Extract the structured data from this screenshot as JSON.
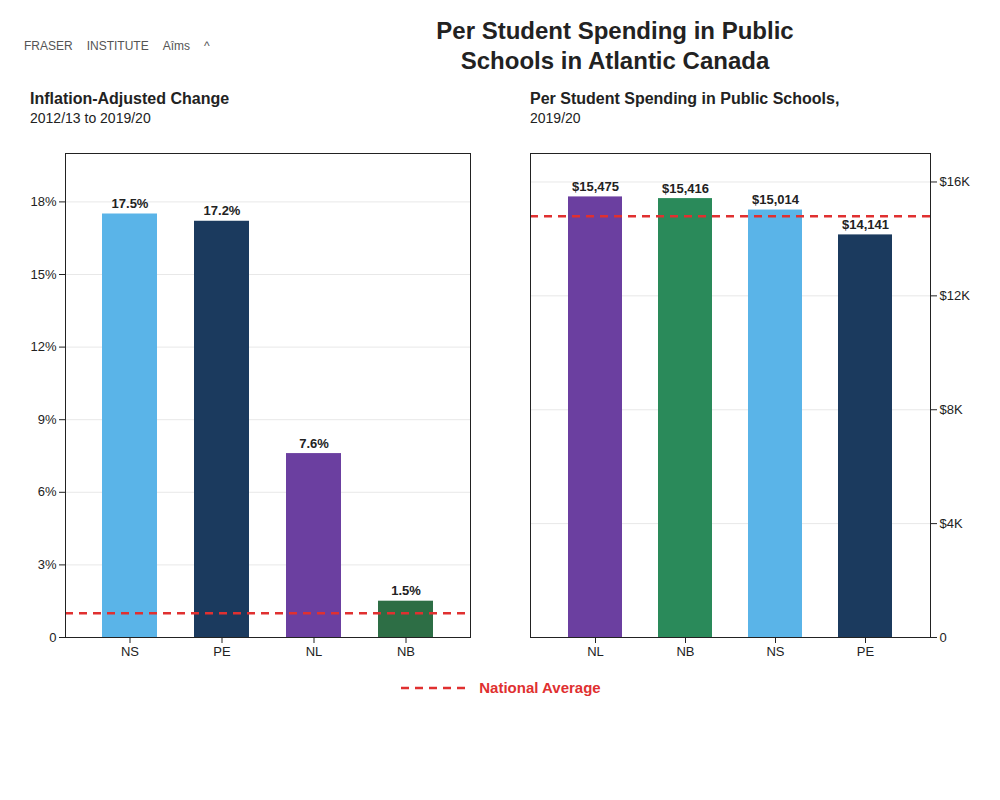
{
  "title": "Per Student Spending in Public\nSchools in Atlantic Canada",
  "annotations": [
    "FRASER",
    "INSTITUTE",
    "Aîms",
    "^"
  ],
  "legend": "bottom",
  "chart_data": [
    {
      "type": "bar",
      "title": "Inflation-Adjusted Change",
      "subtitle": "2012/13 to 2019/20",
      "categories": [
        "NS",
        "PE",
        "NL",
        "NB"
      ],
      "values": [
        17.5,
        17.2,
        7.6,
        1.5
      ],
      "value_labels": [
        "17.5%",
        "17.2%",
        "7.6%",
        "1.5%"
      ],
      "colors": [
        "#5ab4e8",
        "#1b3a5e",
        "#6b3fa0",
        "#2d6e45"
      ],
      "data_labels": true,
      "ylim": [
        0,
        20
      ],
      "yticks": [
        0,
        {
          "value": 3,
          "label": "3%"
        },
        {
          "value": 6,
          "label": "6%"
        },
        {
          "value": 9,
          "label": "9%"
        },
        {
          "value": 12,
          "label": "12%"
        },
        {
          "value": 15,
          "label": "15%"
        },
        {
          "value": 18,
          "label": "18%"
        }
      ],
      "grid": true,
      "national_average": {
        "name": "National Average",
        "value": 1.0,
        "color": "#e03030",
        "line_style": "dashed"
      }
    },
    {
      "type": "bar",
      "title": "Per Student Spending in Public Schools,",
      "subtitle": "2019/20",
      "categories": [
        "NL",
        "NB",
        "NS",
        "PE"
      ],
      "values": [
        15475,
        15416,
        15014,
        14141
      ],
      "value_labels": [
        "$15,475",
        "$15,416",
        "$15,014",
        "$14,141"
      ],
      "colors": [
        "#6b3fa0",
        "#2a8a5a",
        "#5ab4e8",
        "#1b3a5e"
      ],
      "data_labels": true,
      "ylim": [
        0,
        17000
      ],
      "yticks": [
        0,
        {
          "value": 4000,
          "label": "$4K"
        },
        {
          "value": 8000,
          "label": "$8K"
        },
        {
          "value": 12000,
          "label": "$12K"
        },
        {
          "value": 16000,
          "label": "$16K"
        }
      ],
      "grid": true,
      "national_average": {
        "name": "National Average",
        "value": 14800,
        "color": "#e03030",
        "line_style": "dashed"
      }
    }
  ]
}
